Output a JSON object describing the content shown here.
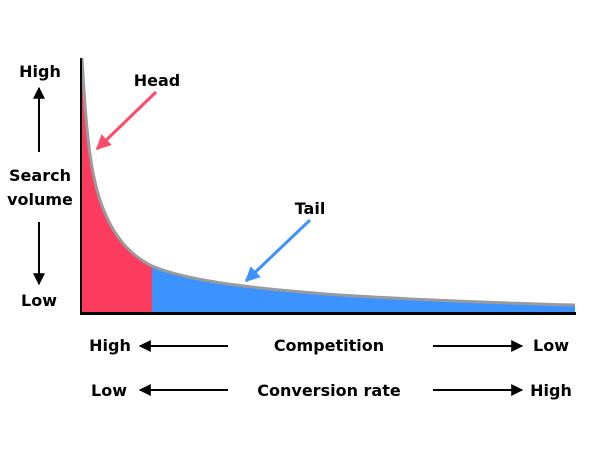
{
  "y_axis": {
    "top_label": "High",
    "title_line1": "Search",
    "title_line2": "volume",
    "bottom_label": "Low"
  },
  "annotations": {
    "head": "Head",
    "tail": "Tail"
  },
  "rows": [
    {
      "left": "High",
      "center": "Competition",
      "right": "Low"
    },
    {
      "left": "Low",
      "center": "Conversion rate",
      "right": "High"
    }
  ],
  "colors": {
    "head_fill": "#fc3c5e",
    "tail_fill": "#3c93ff",
    "curve_stroke": "#9b9b9b",
    "head_arrow": "#ff4a6a",
    "tail_arrow": "#3c93ff",
    "axis": "#000000"
  }
}
